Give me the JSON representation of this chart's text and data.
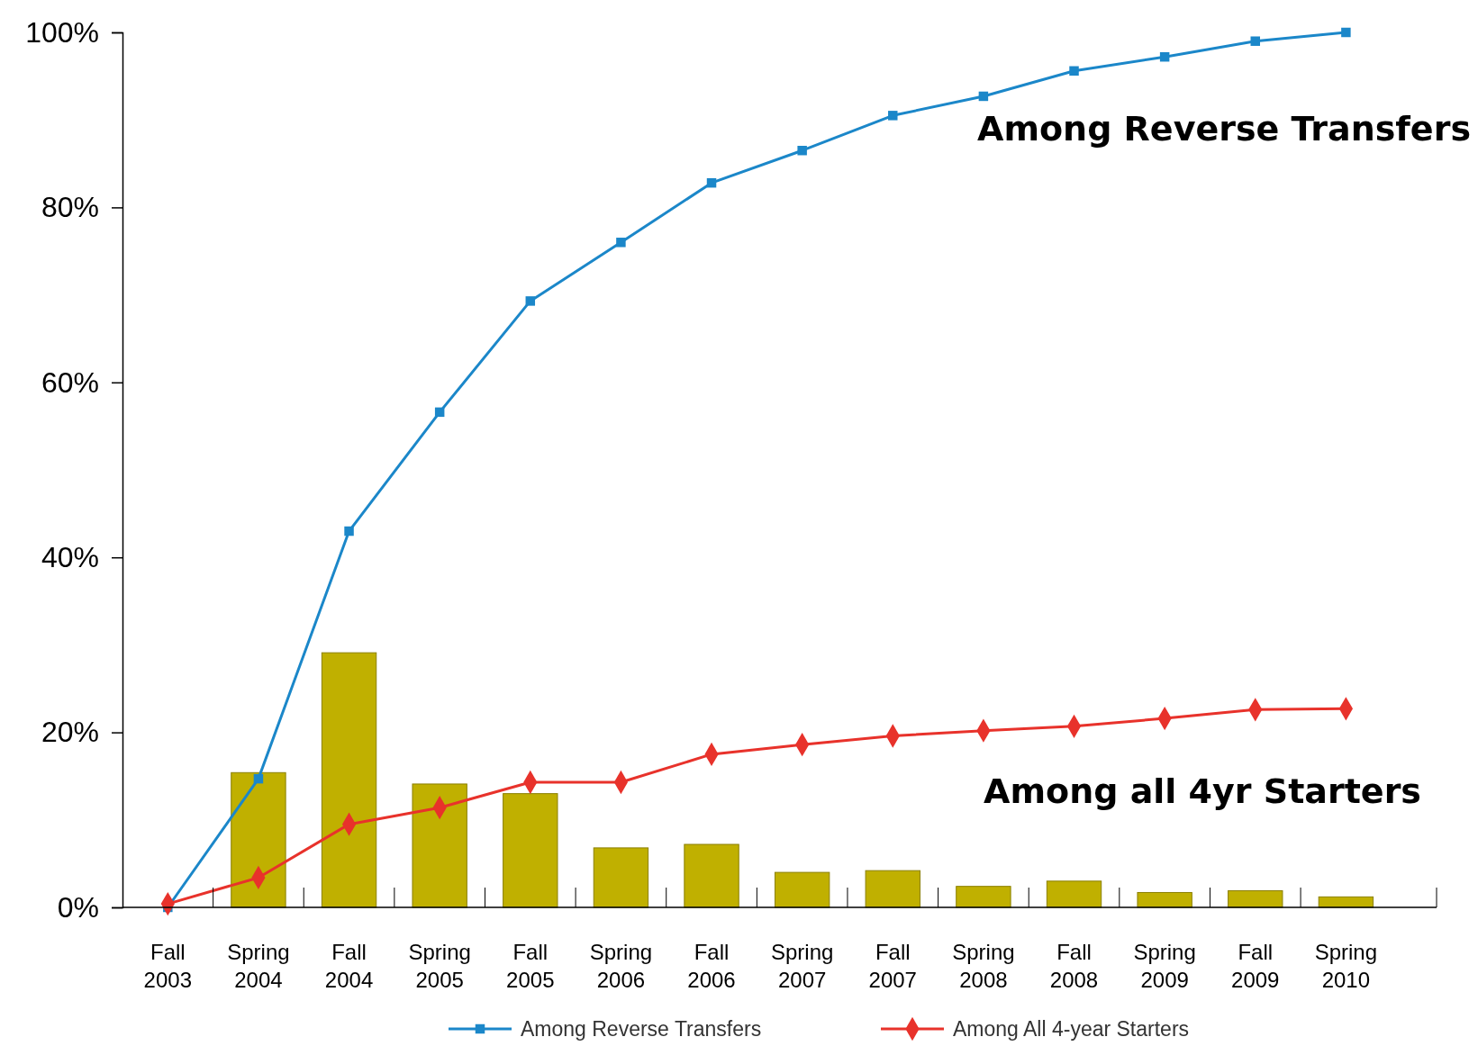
{
  "chart_data": {
    "type": "line",
    "categories": [
      "Fall 2003",
      "Spring 2004",
      "Fall 2004",
      "Spring 2005",
      "Fall 2005",
      "Spring 2006",
      "Fall 2006",
      "Spring 2007",
      "Fall 2007",
      "Spring 2008",
      "Fall 2008",
      "Spring 2009",
      "Fall 2009",
      "Spring 2010"
    ],
    "series": [
      {
        "type": "bar",
        "color": "#c0b000",
        "values": [
          null,
          15.4,
          29.1,
          14.1,
          13.0,
          6.8,
          7.2,
          4.0,
          4.2,
          2.4,
          3.0,
          1.7,
          1.9,
          1.2
        ]
      },
      {
        "name": "Among Reverse Transfers",
        "color": "#1b87c9",
        "marker": "square",
        "values": [
          0,
          14.7,
          43,
          56.6,
          69.3,
          76,
          82.8,
          86.5,
          90.5,
          92.7,
          95.6,
          97.2,
          99,
          100
        ]
      },
      {
        "name": "Among All 4-year Starters",
        "color": "#e8322b",
        "marker": "diamond",
        "values": [
          0.4,
          3.4,
          9.5,
          11.4,
          14.3,
          14.3,
          17.5,
          18.6,
          19.6,
          20.2,
          20.7,
          21.6,
          22.6,
          22.7
        ]
      }
    ],
    "ylim": [
      0,
      100
    ],
    "yticks": [
      {
        "value": 0,
        "label": "0%"
      },
      {
        "value": 20,
        "label": "20%"
      },
      {
        "value": 40,
        "label": "40%"
      },
      {
        "value": 60,
        "label": "60%"
      },
      {
        "value": 80,
        "label": "80%"
      },
      {
        "value": 100,
        "label": "100%"
      }
    ],
    "annotations": [
      "Among Reverse Transfers",
      "Among all 4yr Starters"
    ],
    "legend": "bottom",
    "grid": false
  }
}
